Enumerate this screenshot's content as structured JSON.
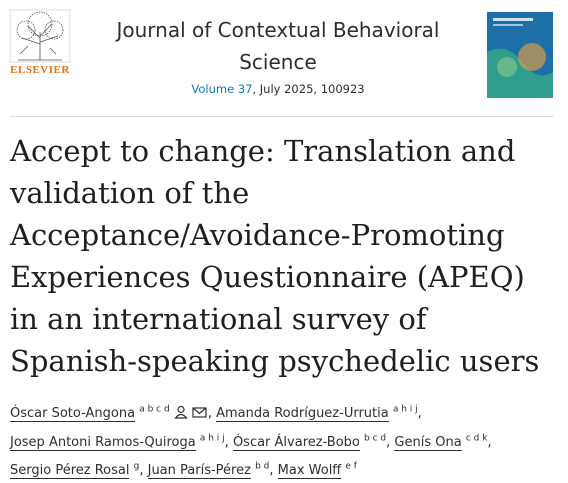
{
  "publisher": "ELSEVIER",
  "journal": {
    "name": "Journal of Contextual Behavioral Science",
    "volume": "Volume 37",
    "issue": ", July 2025, 100923"
  },
  "article": {
    "title": "Accept to change: Translation and validation of the Acceptance/Avoidance-Promoting Experiences Questionnaire (APEQ) in an international survey of Spanish-speaking psychedelic users"
  },
  "author_separator": ",",
  "authors": [
    {
      "name": "Óscar Soto-Angona",
      "affiliations": "a b c d"
    },
    {
      "name": "Amanda Rodríguez-Urrutia",
      "affiliations": "a h i j"
    },
    {
      "name": "Josep Antoni Ramos-Quiroga",
      "affiliations": "a h i j"
    },
    {
      "name": "Óscar Álvarez-Bobo",
      "affiliations": "b c d"
    },
    {
      "name": "Genís Ona",
      "affiliations": "c d k"
    },
    {
      "name": "Sergio Pérez Rosal",
      "affiliations": "g"
    },
    {
      "name": "Juan París-Pérez",
      "affiliations": "b d"
    },
    {
      "name": "Max Wolff",
      "affiliations": "e f"
    }
  ]
}
